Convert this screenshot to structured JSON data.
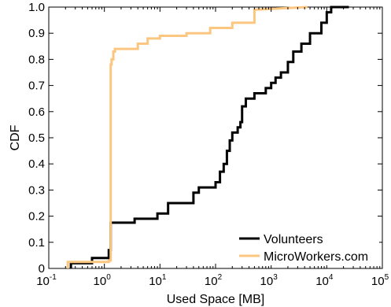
{
  "chart_data": {
    "type": "line",
    "step": true,
    "xlabel": "Used Space [MB]",
    "ylabel": "CDF",
    "xscale": "log",
    "xlim": [
      0.1,
      100000
    ],
    "ylim": [
      0,
      1
    ],
    "x_ticks": [
      {
        "base": "10",
        "exp": "-1"
      },
      {
        "base": "10",
        "exp": "0"
      },
      {
        "base": "10",
        "exp": "1"
      },
      {
        "base": "10",
        "exp": "2"
      },
      {
        "base": "10",
        "exp": "3"
      },
      {
        "base": "10",
        "exp": "4"
      },
      {
        "base": "10",
        "exp": "5"
      }
    ],
    "y_ticks": [
      "0",
      "0.1",
      "0.2",
      "0.3",
      "0.4",
      "0.5",
      "0.6",
      "0.7",
      "0.8",
      "0.9",
      "1.0"
    ],
    "grid": false,
    "legend_position": "bottom-right",
    "series": [
      {
        "name": "Volunteers",
        "color": "#000000",
        "x": [
          0.25,
          0.25,
          0.6,
          0.6,
          1.2,
          1.2,
          1.3,
          1.3,
          3.5,
          3.5,
          9,
          9,
          14,
          14,
          40,
          40,
          50,
          50,
          100,
          100,
          120,
          120,
          140,
          140,
          160,
          160,
          180,
          180,
          200,
          200,
          250,
          250,
          280,
          280,
          300,
          300,
          350,
          350,
          500,
          500,
          800,
          800,
          1000,
          1000,
          1200,
          1200,
          1500,
          1500,
          2000,
          2000,
          2500,
          2500,
          3500,
          3500,
          5000,
          5000,
          8000,
          8000,
          10000,
          10000,
          12000,
          12000,
          25000
        ],
        "y": [
          0,
          0.02,
          0.02,
          0.04,
          0.04,
          0.07,
          0.07,
          0.175,
          0.175,
          0.19,
          0.19,
          0.21,
          0.21,
          0.25,
          0.25,
          0.29,
          0.29,
          0.31,
          0.31,
          0.33,
          0.33,
          0.37,
          0.37,
          0.4,
          0.4,
          0.45,
          0.45,
          0.49,
          0.49,
          0.52,
          0.52,
          0.54,
          0.54,
          0.56,
          0.56,
          0.62,
          0.62,
          0.65,
          0.65,
          0.67,
          0.67,
          0.69,
          0.69,
          0.71,
          0.71,
          0.73,
          0.73,
          0.75,
          0.75,
          0.79,
          0.79,
          0.83,
          0.83,
          0.86,
          0.86,
          0.9,
          0.9,
          0.94,
          0.94,
          0.98,
          0.98,
          1.0,
          1.0
        ]
      },
      {
        "name": "MicroWorkers.com",
        "color": "#fbc780",
        "x": [
          0.22,
          0.22,
          1.2,
          1.2,
          1.3,
          1.3,
          1.35,
          1.35,
          1.45,
          1.45,
          1.55,
          1.55,
          4,
          4,
          6,
          6,
          10,
          10,
          30,
          30,
          80,
          80,
          200,
          200,
          500,
          500,
          4500
        ],
        "y": [
          0,
          0.025,
          0.025,
          0.03,
          0.03,
          0.78,
          0.78,
          0.8,
          0.8,
          0.83,
          0.83,
          0.84,
          0.84,
          0.86,
          0.86,
          0.88,
          0.88,
          0.89,
          0.89,
          0.9,
          0.9,
          0.92,
          0.92,
          0.94,
          0.94,
          0.99,
          1.0
        ]
      }
    ]
  }
}
